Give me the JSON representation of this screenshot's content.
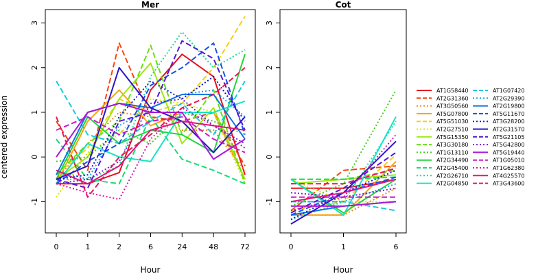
{
  "chart_data": {
    "type": "line",
    "ylabel": "centered expression",
    "colors": [
      "#e8101e",
      "#f2460e",
      "#f58312",
      "#f6a40f",
      "#f5d00f",
      "#d6e30f",
      "#9ee80f",
      "#66e010",
      "#3ed11a",
      "#22d43c",
      "#1ad975",
      "#18d99a",
      "#18e3c5",
      "#18c8e0",
      "#1aa0e8",
      "#1273e0",
      "#1450e8",
      "#1018d2",
      "#2a14c8",
      "#5018d4",
      "#7a18d8",
      "#a818d8",
      "#c818c8",
      "#d814a8",
      "#e0147e",
      "#e81458"
    ],
    "panels": [
      {
        "title": "Mer",
        "xlabel": "Hour",
        "x": [
          "0",
          "1",
          "2",
          "6",
          "24",
          "48",
          "72"
        ],
        "ylim": [
          -1.7,
          3.3
        ],
        "yticks": [
          "-1",
          "0",
          "1",
          "2",
          "3"
        ],
        "series": [
          {
            "name": "AT1G58440",
            "dash": "solid",
            "values": [
              -0.6,
              -0.6,
              -0.35,
              1.5,
              2.3,
              1.8,
              -0.4
            ]
          },
          {
            "name": "AT2G31360",
            "dash": "dashed",
            "values": [
              0.8,
              -0.3,
              2.55,
              0.9,
              0.8,
              1.0,
              -0.2
            ]
          },
          {
            "name": "AT3G50560",
            "dash": "dotted",
            "values": [
              -0.5,
              0.3,
              1.0,
              0.9,
              0.6,
              0.6,
              -0.3
            ]
          },
          {
            "name": "AT5G07800",
            "dash": "solid",
            "values": [
              -0.6,
              0.8,
              1.5,
              0.7,
              1.0,
              1.0,
              -0.5
            ]
          },
          {
            "name": "AT5G51030",
            "dash": "dashed",
            "values": [
              -0.4,
              0.2,
              1.3,
              1.0,
              1.2,
              2.0,
              3.15
            ]
          },
          {
            "name": "AT2G27510",
            "dash": "dotted",
            "values": [
              -0.9,
              0.1,
              0.5,
              1.3,
              1.2,
              1.0,
              -0.6
            ]
          },
          {
            "name": "AT5G15350",
            "dash": "solid",
            "values": [
              -0.5,
              0.0,
              1.3,
              2.1,
              0.3,
              1.1,
              -0.5
            ]
          },
          {
            "name": "AT3G30180",
            "dash": "dashed",
            "values": [
              -0.4,
              0.3,
              0.8,
              2.5,
              0.5,
              1.5,
              -0.6
            ]
          },
          {
            "name": "AT1G13110",
            "dash": "dotted",
            "values": [
              -0.1,
              0.0,
              0.6,
              0.3,
              1.0,
              0.8,
              0.5
            ]
          },
          {
            "name": "AT2G34490",
            "dash": "solid",
            "values": [
              -0.5,
              0.9,
              0.3,
              0.6,
              0.5,
              0.1,
              2.3
            ]
          },
          {
            "name": "AT2G45400",
            "dash": "dashed",
            "values": [
              0.4,
              -0.5,
              -0.6,
              0.9,
              -0.05,
              -0.3,
              -0.6
            ]
          },
          {
            "name": "AT2G26710",
            "dash": "dotted",
            "values": [
              -0.5,
              -0.5,
              -0.2,
              1.8,
              2.8,
              2.0,
              2.4
            ]
          },
          {
            "name": "AT2G04850",
            "dash": "solid",
            "values": [
              -0.6,
              0.3,
              0.0,
              -0.1,
              1.0,
              1.0,
              1.25
            ]
          },
          {
            "name": "AT1G07420",
            "dash": "dashed",
            "values": [
              1.7,
              0.5,
              0.3,
              0.8,
              1.2,
              0.5,
              1.7
            ]
          },
          {
            "name": "AT2G29390",
            "dash": "dotted",
            "values": [
              -0.3,
              -0.5,
              0.7,
              1.1,
              1.4,
              1.5,
              0.9
            ]
          },
          {
            "name": "AT2G19800",
            "dash": "solid",
            "values": [
              -0.4,
              1.0,
              1.2,
              1.1,
              1.4,
              1.4,
              0.4
            ]
          },
          {
            "name": "AT5G11670",
            "dash": "dashed",
            "values": [
              -0.6,
              -0.1,
              0.3,
              1.6,
              2.0,
              2.55,
              0.5
            ]
          },
          {
            "name": "AT3G28200",
            "dash": "dotted",
            "values": [
              -0.5,
              -0.4,
              0.9,
              1.7,
              1.3,
              1.8,
              0.8
            ]
          },
          {
            "name": "AT2G31570",
            "dash": "solid",
            "values": [
              -0.5,
              -0.2,
              2.0,
              1.1,
              0.8,
              0.1,
              0.9
            ]
          },
          {
            "name": "AT5G21105",
            "dash": "dashed",
            "values": [
              -0.5,
              -0.7,
              0.8,
              1.0,
              2.6,
              2.2,
              0.6
            ]
          },
          {
            "name": "AT5G42800",
            "dash": "dotted",
            "values": [
              -0.6,
              -0.5,
              -0.1,
              1.2,
              1.3,
              0.7,
              0.3
            ]
          },
          {
            "name": "AT5G19440",
            "dash": "solid",
            "values": [
              0.0,
              1.0,
              1.2,
              1.0,
              1.0,
              -0.05,
              0.4
            ]
          },
          {
            "name": "AT1G05010",
            "dash": "dashed",
            "values": [
              0.6,
              0.9,
              0.5,
              0.8,
              0.9,
              0.4,
              0.1
            ]
          },
          {
            "name": "AT1G62380",
            "dash": "dotted",
            "values": [
              -0.6,
              -0.8,
              -0.95,
              0.4,
              1.1,
              0.7,
              0.2
            ]
          },
          {
            "name": "AT4G25570",
            "dash": "solid",
            "values": [
              -0.3,
              -0.6,
              -0.2,
              0.6,
              0.8,
              0.7,
              0.6
            ]
          },
          {
            "name": "AT3G43600",
            "dash": "dashed",
            "values": [
              0.9,
              -0.9,
              0.0,
              0.5,
              1.1,
              1.4,
              2.0
            ]
          }
        ]
      },
      {
        "title": "Cot",
        "xlabel": "Hour",
        "x": [
          "0",
          "1",
          "6"
        ],
        "ylim": [
          -1.7,
          3.3
        ],
        "yticks": [
          "-1",
          "0",
          "1",
          "2",
          "3"
        ],
        "series": [
          {
            "name": "AT1G58440",
            "dash": "solid",
            "values": [
              -0.7,
              -0.7,
              -0.5
            ]
          },
          {
            "name": "AT2G31360",
            "dash": "dashed",
            "values": [
              -1.2,
              -0.3,
              -0.2
            ]
          },
          {
            "name": "AT3G50560",
            "dash": "dotted",
            "values": [
              -1.3,
              -1.3,
              -0.7
            ]
          },
          {
            "name": "AT5G07800",
            "dash": "solid",
            "values": [
              -1.3,
              -1.3,
              -0.1
            ]
          },
          {
            "name": "AT5G51030",
            "dash": "dashed",
            "values": [
              -1.2,
              -1.0,
              0.05
            ]
          },
          {
            "name": "AT2G27510",
            "dash": "dotted",
            "values": [
              -0.5,
              -1.0,
              -1.0
            ]
          },
          {
            "name": "AT5G15350",
            "dash": "solid",
            "values": [
              -0.6,
              -0.5,
              -0.4
            ]
          },
          {
            "name": "AT3G30180",
            "dash": "dashed",
            "values": [
              -0.5,
              -0.5,
              -0.3
            ]
          },
          {
            "name": "AT1G13110",
            "dash": "dotted",
            "values": [
              -1.1,
              -0.6,
              1.5
            ]
          },
          {
            "name": "AT2G34490",
            "dash": "solid",
            "values": [
              -0.5,
              -1.25,
              -0.5
            ]
          },
          {
            "name": "AT2G45400",
            "dash": "dashed",
            "values": [
              -0.5,
              -0.5,
              -0.45
            ]
          },
          {
            "name": "AT2G26710",
            "dash": "dotted",
            "values": [
              -1.4,
              -1.0,
              0.8
            ]
          },
          {
            "name": "AT2G04850",
            "dash": "solid",
            "values": [
              -0.5,
              -1.3,
              0.9
            ]
          },
          {
            "name": "AT1G07420",
            "dash": "dashed",
            "values": [
              -1.0,
              -1.0,
              -1.2
            ]
          },
          {
            "name": "AT2G29390",
            "dash": "dotted",
            "values": [
              -1.0,
              -1.0,
              -0.6
            ]
          },
          {
            "name": "AT2G19800",
            "dash": "solid",
            "values": [
              -1.3,
              -1.1,
              -1.0
            ]
          },
          {
            "name": "AT5G11670",
            "dash": "dashed",
            "values": [
              -1.3,
              -0.8,
              -0.45
            ]
          },
          {
            "name": "AT3G28200",
            "dash": "dotted",
            "values": [
              -1.4,
              -0.8,
              -0.3
            ]
          },
          {
            "name": "AT2G31570",
            "dash": "solid",
            "values": [
              -1.5,
              -0.8,
              0.35
            ]
          },
          {
            "name": "AT5G21105",
            "dash": "dashed",
            "values": [
              -1.25,
              -0.7,
              0.1
            ]
          },
          {
            "name": "AT5G42800",
            "dash": "dotted",
            "values": [
              -0.8,
              -0.9,
              -0.7
            ]
          },
          {
            "name": "AT5G19440",
            "dash": "solid",
            "values": [
              -1.1,
              -1.1,
              -1.0
            ]
          },
          {
            "name": "AT1G05010",
            "dash": "dashed",
            "values": [
              -0.9,
              -0.9,
              -0.9
            ]
          },
          {
            "name": "AT1G62380",
            "dash": "dotted",
            "values": [
              -1.2,
              -0.9,
              0.5
            ]
          },
          {
            "name": "AT4G25570",
            "dash": "solid",
            "values": [
              -1.0,
              -0.8,
              -0.5
            ]
          },
          {
            "name": "AT3G43600",
            "dash": "dashed",
            "values": [
              -0.6,
              -0.6,
              -0.25
            ]
          }
        ]
      }
    ]
  }
}
